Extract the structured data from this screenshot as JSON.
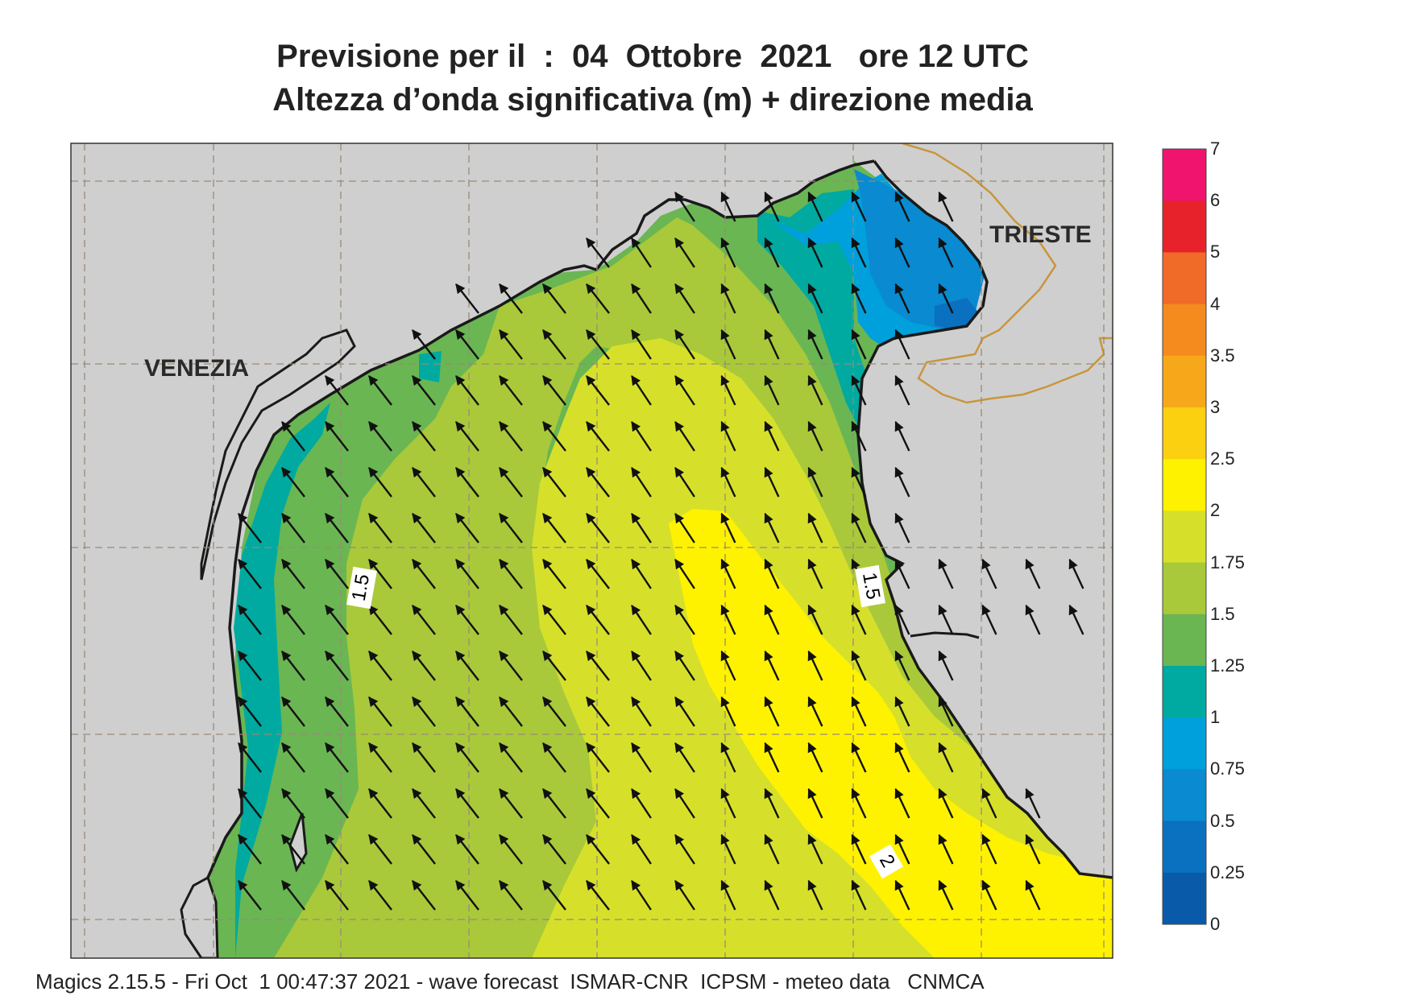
{
  "header": {
    "title_line1": "Previsione per il  :  04  Ottobre  2021   ore 12 UTC",
    "title_line2": "Altezza d’onda significativa (m) + direzione media"
  },
  "map": {
    "land_color": "#cfcfcf",
    "coast_color": "#1a1a1a",
    "border_color": "#c8963c",
    "graticule_color": "#9a8a78",
    "labels": {
      "venezia": "VENEZIA",
      "trieste": "TRIESTE"
    },
    "contour_labels": [
      "1.5",
      "1.5",
      "2"
    ],
    "mean_wave_direction": "NW"
  },
  "legend": {
    "unit": "m",
    "ticks": [
      "7",
      "6",
      "5",
      "4",
      "3.5",
      "3",
      "2.5",
      "2",
      "1.75",
      "1.5",
      "1.25",
      "1",
      "0.75",
      "0.5",
      "0.25",
      "0"
    ],
    "colors": [
      "#f0146e",
      "#e8222a",
      "#f06a28",
      "#f58a1e",
      "#f7a81a",
      "#fbd010",
      "#fff200",
      "#d6e02a",
      "#a9c93a",
      "#6ab653",
      "#00aaa0",
      "#00a0dc",
      "#0a8ad0",
      "#0a70c0",
      "#0a5aaa"
    ]
  },
  "footer": {
    "text": "Magics 2.15.5 - Fri Oct  1 00:47:37 2021 - wave forecast  ISMAR-CNR  ICPSM - meteo data   CNMCA"
  }
}
